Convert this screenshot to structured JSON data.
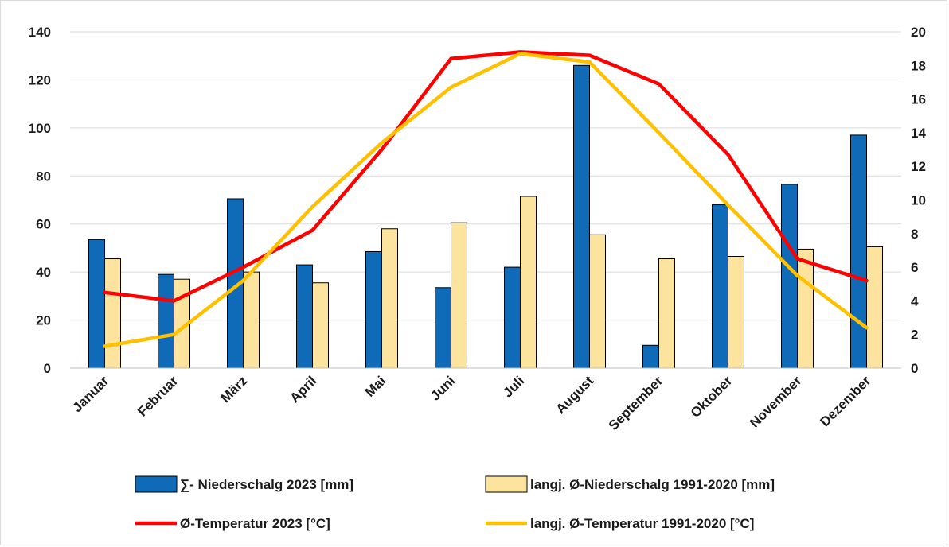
{
  "chart_data": {
    "type": "bar",
    "categories": [
      "Januar",
      "Februar",
      "März",
      "April",
      "Mai",
      "Juni",
      "Juli",
      "August",
      "September",
      "Oktober",
      "November",
      "Dezember"
    ],
    "bar_series": [
      {
        "name": "∑- Niederschalg 2023 [mm]",
        "color": "#0f6ab7",
        "values": [
          53.5,
          39,
          70.5,
          43,
          48.5,
          33.5,
          42,
          126,
          9.5,
          68,
          76.5,
          97
        ]
      },
      {
        "name": "langj. Ø-Niederschalg 1991-2020 [mm]",
        "color": "#fde49e",
        "values": [
          45.5,
          37,
          40,
          35.5,
          58,
          60.5,
          71.5,
          55.5,
          45.5,
          46.5,
          49.5,
          50.5
        ]
      }
    ],
    "line_series": [
      {
        "name": "Ø-Temperatur 2023 [°C]",
        "color": "#ff0000",
        "values": [
          4.5,
          4.0,
          6.0,
          8.2,
          13.0,
          18.4,
          18.8,
          18.6,
          16.9,
          12.7,
          6.5,
          5.2
        ]
      },
      {
        "name": "langj. Ø-Temperatur 1991-2020 [°C]",
        "color": "#ffc000",
        "values": [
          1.3,
          2.0,
          5.2,
          9.6,
          13.4,
          16.7,
          18.7,
          18.2,
          14.0,
          9.7,
          5.5,
          2.4
        ]
      }
    ],
    "y_left": {
      "ylim": [
        0,
        140
      ],
      "ticks": [
        "0",
        "20",
        "40",
        "60",
        "80",
        "100",
        "120",
        "140"
      ]
    },
    "y_right": {
      "ylim": [
        0,
        20
      ],
      "ticks": [
        "0",
        "2",
        "4",
        "6",
        "8",
        "10",
        "12",
        "14",
        "16",
        "18",
        "20"
      ]
    },
    "grid": true,
    "legend": {
      "placement": "bottom"
    }
  }
}
